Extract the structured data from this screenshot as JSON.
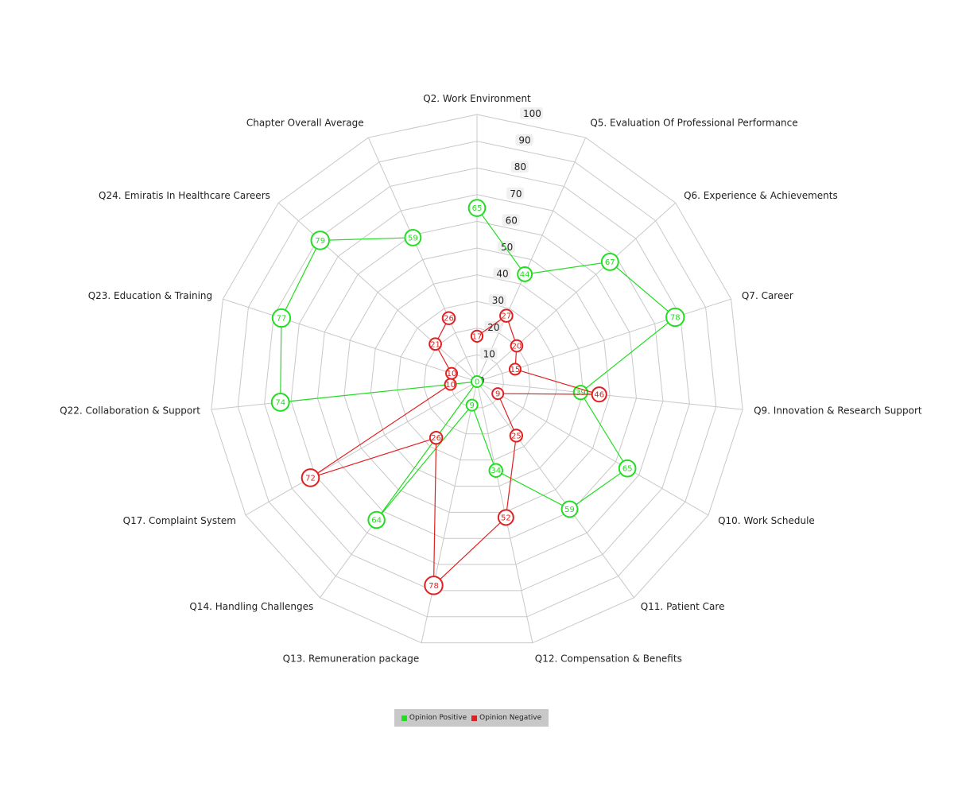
{
  "chart_data": {
    "type": "radar",
    "title": "",
    "categories": [
      "Q2. Work Environment",
      "Q5. Evaluation Of Professional Performance",
      "Q6. Experience & Achievements",
      "Q7. Career",
      "Q9. Innovation & Research Support",
      "Q10. Work Schedule",
      "Q11. Patient Care",
      "Q12. Compensation & Benefits",
      "Q13. Remuneration package",
      "Q14. Handling Challenges",
      "Q17. Complaint System",
      "Q22. Collaboration & Support",
      "Q23. Education & Training",
      "Q24. Emiratis In Healthcare Careers",
      "Chapter Overall Average"
    ],
    "rlim": [
      0,
      100
    ],
    "ticks": [
      "0",
      "10",
      "20",
      "30",
      "40",
      "50",
      "60",
      "70",
      "80",
      "90",
      "100"
    ],
    "grid": true,
    "legend_position": "bottom",
    "series": [
      {
        "name": "Opinion Positive",
        "color": "#22dd22",
        "values": [
          65,
          44,
          67,
          78,
          39,
          65,
          59,
          34,
          9,
          64,
          0,
          74,
          77,
          79,
          59
        ],
        "value_labels": [
          "65",
          "44",
          "67",
          "78",
          "39",
          "65",
          "59",
          "34",
          "9",
          "64",
          "0",
          "74",
          "77",
          "79",
          "59"
        ]
      },
      {
        "name": "Opinion Negative",
        "color": "#e02020",
        "values": [
          17,
          27,
          20,
          15,
          46,
          9,
          25,
          52,
          78,
          26,
          72,
          10,
          10,
          21,
          26
        ],
        "value_labels": [
          "17",
          "27",
          "20",
          "15",
          "46",
          "9",
          "25",
          "52",
          "78",
          "26",
          "72",
          "10",
          "10",
          "21",
          "26"
        ]
      }
    ]
  }
}
